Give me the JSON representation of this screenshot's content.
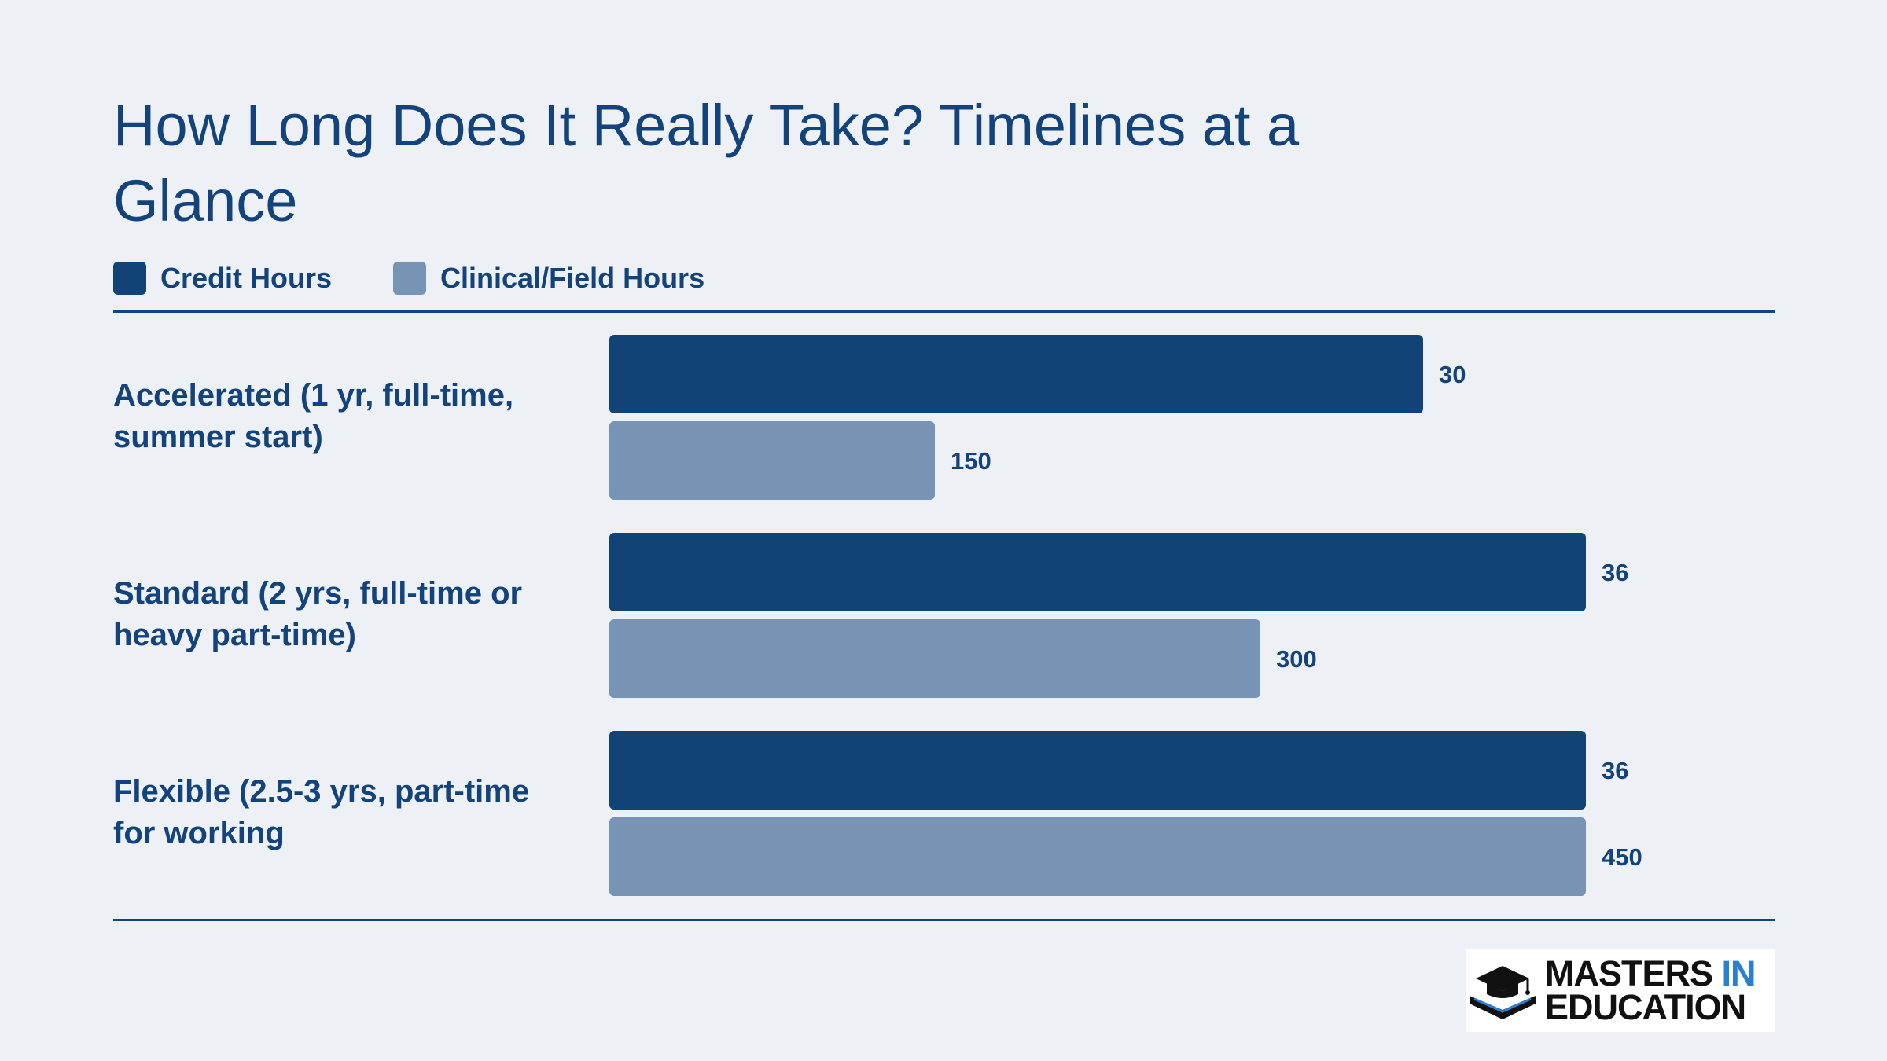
{
  "chart_data": {
    "type": "bar",
    "orientation": "horizontal",
    "title": "How Long Does It Really Take? Timelines at a Glance",
    "categories": [
      "Accelerated (1 yr, full-time, summer start)",
      "Standard (2 yrs, full-time or heavy part-time)",
      "Flexible (2.5-3 yrs, part-time for working"
    ],
    "series": [
      {
        "name": "Credit Hours",
        "values": [
          30,
          36,
          36
        ],
        "color": "#124377"
      },
      {
        "name": "Clinical/Field Hours",
        "values": [
          150,
          300,
          450
        ],
        "color": "#7794b4"
      }
    ],
    "value_labels": [
      [
        "30",
        "36",
        "36"
      ],
      [
        "150",
        "300",
        "450"
      ]
    ],
    "legend_position": "top-left",
    "grid": false
  },
  "logo": {
    "line1": "MASTERS ",
    "line1_accent": "IN",
    "line2": "EDUCATION"
  }
}
